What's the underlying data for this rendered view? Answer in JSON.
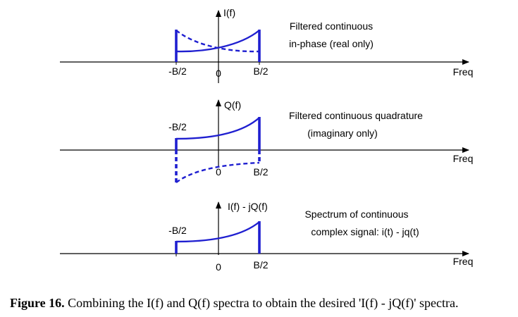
{
  "panels": [
    {
      "y_label": "I(f)",
      "description_lines": [
        "Filtered continuous",
        "in-phase (real only)"
      ],
      "tick_labels": [
        "-B/2",
        "0",
        "B/2"
      ],
      "x_axis_label": "Freq"
    },
    {
      "y_label": "Q(f)",
      "description_lines": [
        "Filtered continuous quadrature",
        "(imaginary only)"
      ],
      "tick_labels": [
        "-B/2",
        "0",
        "B/2"
      ],
      "x_axis_label": "Freq"
    },
    {
      "y_label": "I(f) - jQ(f)",
      "description_lines": [
        "Spectrum of continuous",
        "complex signal: i(t) - jq(t)"
      ],
      "tick_labels": [
        "-B/2",
        "0",
        "B/2"
      ],
      "x_axis_label": "Freq"
    }
  ],
  "caption": {
    "label": "Figure 16.",
    "text": "Combining the I(f) and Q(f) spectra to obtain the desired 'I(f) - jQ(f)' spectra."
  },
  "colors": {
    "curve": "#1f1fd0",
    "axis": "#000000"
  }
}
